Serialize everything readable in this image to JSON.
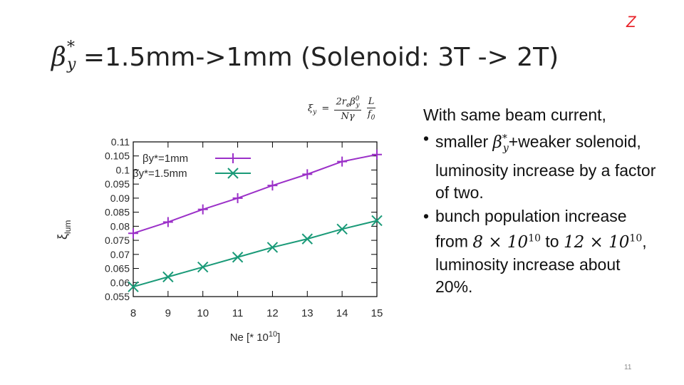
{
  "corner_tag": "Z",
  "title": {
    "symbol": "β",
    "sup": "*",
    "sub": "y",
    "text": "=1.5mm->1mm (Solenoid: 3T -> 2T)"
  },
  "formula": {
    "lhs": "ξ",
    "lhs_sub": "y",
    "equals": "=",
    "numerator": "2r",
    "numerator_sub": "e",
    "numerator_tail": "β",
    "numerator_tail_sup": "0",
    "numerator_tail_sub": "y",
    "denominator": "Nγ",
    "frac2_num": "L",
    "frac2_den": "f",
    "frac2_den_sub": "0"
  },
  "bullets": {
    "intro": "With same beam current,",
    "item1_pre": "smaller ",
    "item1_math": "β",
    "item1_math_sup": "*",
    "item1_math_sub": "y",
    "item1_post": "+weaker solenoid, luminosity increase by a factor of two.",
    "item2_pre": "bunch population increase from ",
    "item2_math1": "8 × 10",
    "item2_math1_sup": "10",
    "item2_mid": " to ",
    "item2_math2": "12 × 10",
    "item2_math2_sup": "10",
    "item2_post": ", luminosity increase about 20%."
  },
  "page_number": "11",
  "chart_data": {
    "type": "line",
    "x": [
      8,
      9,
      10,
      11,
      12,
      13,
      14,
      15
    ],
    "xlim": [
      8,
      15
    ],
    "ylim": [
      0.055,
      0.11
    ],
    "xlabel": "Ne [* 10",
    "xlabel_sup": "10",
    "xlabel_tail": "]",
    "ylabel": "ξ",
    "ylabel_sub": "lum",
    "x_ticks": [
      "8",
      "9",
      "10",
      "11",
      "12",
      "13",
      "14",
      "15"
    ],
    "y_ticks": [
      "0.11",
      "0.105",
      "0.1",
      "0.095",
      "0.09",
      "0.085",
      "0.08",
      "0.075",
      "0.07",
      "0.065",
      "0.06",
      "0.055"
    ],
    "grid": false,
    "legend_position": "top-left",
    "series": [
      {
        "name": "βy*=1mm",
        "marker": "plus",
        "color": "#9b30c8",
        "values": [
          0.0775,
          0.0815,
          0.086,
          0.09,
          0.0945,
          0.0985,
          0.103,
          0.1055
        ]
      },
      {
        "name": "βy*=1.5mm",
        "marker": "x",
        "color": "#1a9a78",
        "values": [
          0.0585,
          0.062,
          0.0655,
          0.069,
          0.0725,
          0.0755,
          0.079,
          0.082
        ]
      }
    ]
  }
}
